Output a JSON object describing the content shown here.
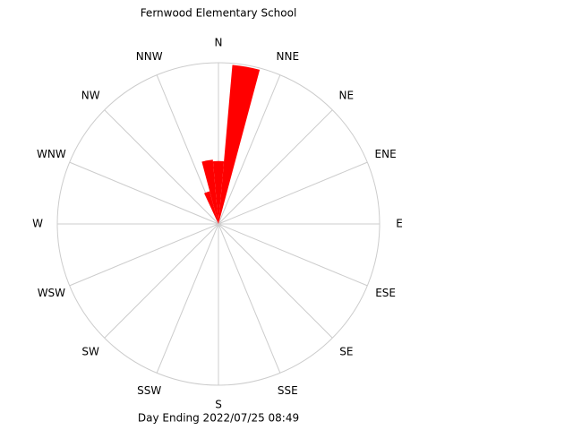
{
  "chart_data": {
    "type": "windrose",
    "title": "Fernwood Elementary School",
    "footer": "Day Ending 2022/07/25 08:49",
    "directions": [
      "N",
      "NNE",
      "NE",
      "ENE",
      "E",
      "ESE",
      "SE",
      "SSE",
      "S",
      "SSW",
      "SW",
      "WSW",
      "W",
      "WNW",
      "NW",
      "NNW"
    ],
    "angles": [
      340,
      350,
      0,
      10
    ],
    "bin_width": 10,
    "values": [
      21,
      40,
      39,
      99
    ],
    "rlim": [
      0,
      100
    ],
    "color": "#ff0000"
  }
}
